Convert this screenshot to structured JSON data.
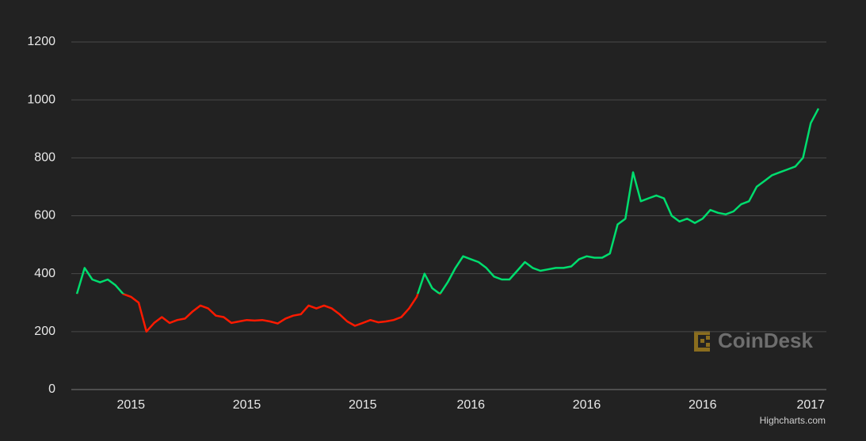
{
  "chart_data": {
    "type": "line",
    "categories": [
      null,
      null,
      null,
      null,
      null,
      null,
      null,
      "2015",
      null,
      null,
      null,
      null,
      null,
      null,
      null,
      null,
      null,
      null,
      null,
      null,
      null,
      null,
      "2015",
      null,
      null,
      null,
      null,
      null,
      null,
      null,
      null,
      null,
      null,
      null,
      null,
      null,
      null,
      "2015",
      null,
      null,
      null,
      null,
      null,
      null,
      null,
      null,
      null,
      null,
      null,
      null,
      null,
      "2016",
      null,
      null,
      null,
      null,
      null,
      null,
      null,
      null,
      null,
      null,
      null,
      null,
      null,
      null,
      "2016",
      null,
      null,
      null,
      null,
      null,
      null,
      null,
      null,
      null,
      null,
      null,
      null,
      null,
      null,
      "2016",
      null,
      null,
      null,
      null,
      null,
      null,
      null,
      null,
      null,
      null,
      null,
      null,
      null,
      "2017",
      null
    ],
    "values": [
      330,
      420,
      380,
      370,
      380,
      360,
      330,
      320,
      300,
      200,
      230,
      250,
      230,
      240,
      245,
      270,
      290,
      280,
      255,
      250,
      230,
      235,
      240,
      238,
      240,
      235,
      228,
      245,
      255,
      260,
      290,
      280,
      290,
      280,
      260,
      235,
      220,
      230,
      240,
      232,
      235,
      240,
      250,
      280,
      320,
      400,
      350,
      330,
      370,
      420,
      460,
      450,
      440,
      420,
      390,
      380,
      380,
      410,
      440,
      420,
      410,
      415,
      420,
      420,
      425,
      450,
      460,
      455,
      455,
      470,
      570,
      590,
      750,
      650,
      660,
      670,
      660,
      600,
      580,
      590,
      575,
      590,
      620,
      610,
      605,
      615,
      640,
      650,
      700,
      720,
      740,
      750,
      760,
      770,
      800,
      920,
      970
    ],
    "ylim": [
      0,
      1200
    ],
    "yticks": [
      0,
      200,
      400,
      600,
      800,
      1000,
      1200
    ],
    "grid": true,
    "zone_threshold": 330,
    "color_above": "#00dd6e",
    "color_below": "#ff1a00",
    "watermark": "CoinDesk",
    "credits": "Highcharts.com"
  }
}
